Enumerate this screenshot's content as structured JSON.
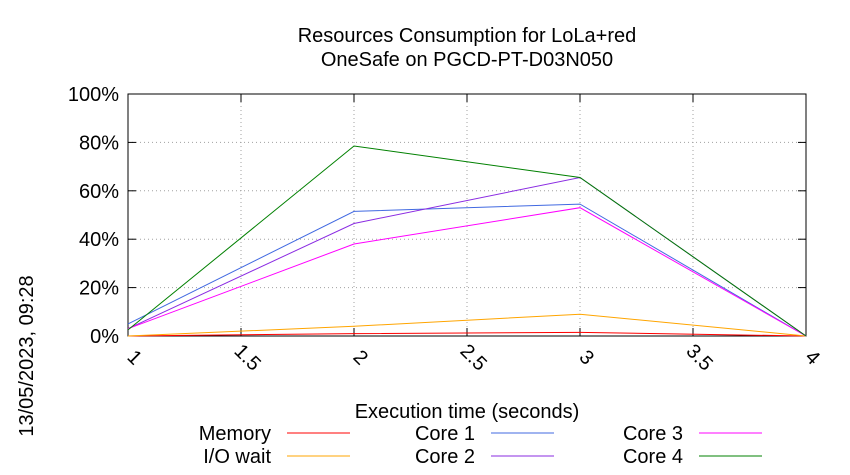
{
  "chart_data": {
    "type": "line",
    "title": [
      "Resources Consumption for LoLa+red",
      "OneSafe on PGCD-PT-D03N050"
    ],
    "xlabel": "Execution time (seconds)",
    "ylabel": "",
    "side_label": "13/05/2023, 09:28",
    "xlim": [
      1,
      4
    ],
    "ylim": [
      0,
      100
    ],
    "x_ticks": [
      1,
      1.5,
      2,
      2.5,
      3,
      3.5,
      4
    ],
    "x_tick_labels": [
      "1",
      "1.5",
      "2",
      "2.5",
      "3",
      "3.5",
      "4"
    ],
    "y_ticks": [
      0,
      20,
      40,
      60,
      80,
      100
    ],
    "y_tick_labels": [
      "0%",
      "20%",
      "40%",
      "60%",
      "80%",
      "100%"
    ],
    "grid": true,
    "legend_position": "bottom",
    "x": [
      1,
      2,
      3,
      4
    ],
    "series": [
      {
        "name": "Memory",
        "color": "#ff0000",
        "values": [
          0,
          1,
          1.5,
          0
        ]
      },
      {
        "name": "I/O wait",
        "color": "#ffa500",
        "values": [
          0,
          4,
          9,
          0
        ]
      },
      {
        "name": "Core 1",
        "color": "#4169e1",
        "values": [
          5,
          51.5,
          54.5,
          0
        ]
      },
      {
        "name": "Core 2",
        "color": "#8a2be2",
        "values": [
          3,
          46.5,
          65.5,
          0
        ]
      },
      {
        "name": "Core 3",
        "color": "#ff00ff",
        "values": [
          3,
          38,
          53,
          0
        ]
      },
      {
        "name": "Core 4",
        "color": "#008000",
        "values": [
          2.5,
          78.5,
          65.5,
          0
        ]
      }
    ]
  }
}
